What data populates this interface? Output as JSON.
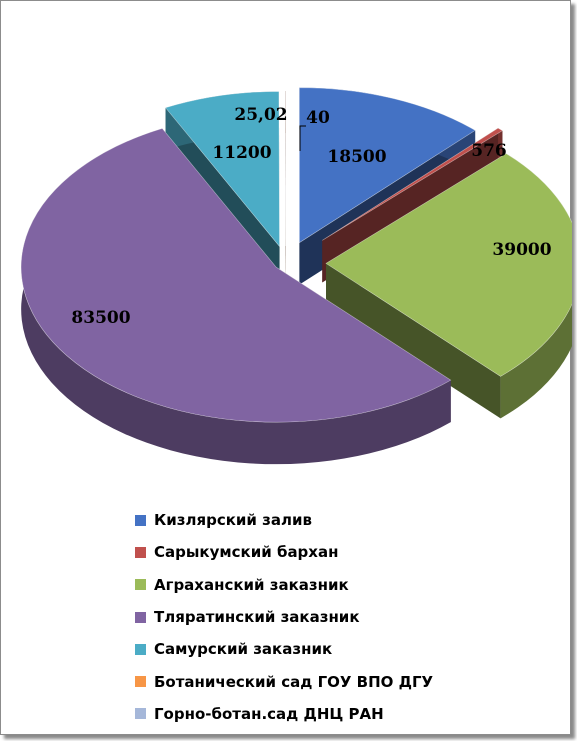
{
  "chart_data": {
    "type": "pie",
    "title": "",
    "categories": [
      "Кизлярский залив",
      "Сарыкумский бархан",
      "Аграханский заказник",
      "Тляратинский заказник",
      "Самурский заказник",
      "Ботанический сад ГОУ ВПО ДГУ",
      "Горно-ботан.сад ДНЦ РАН"
    ],
    "values": [
      18500,
      576,
      39000,
      83500,
      11200,
      25.02,
      40
    ],
    "data_labels": [
      "18500",
      "576",
      "39000",
      "83500",
      "11200",
      "25,02",
      "40"
    ],
    "colors": [
      "#4472c4",
      "#c0504d",
      "#9bbb59",
      "#8064a2",
      "#4bacc6",
      "#f79646",
      "#a5b7d9"
    ],
    "exploded": true,
    "three_d": true,
    "legend_position": "bottom"
  }
}
